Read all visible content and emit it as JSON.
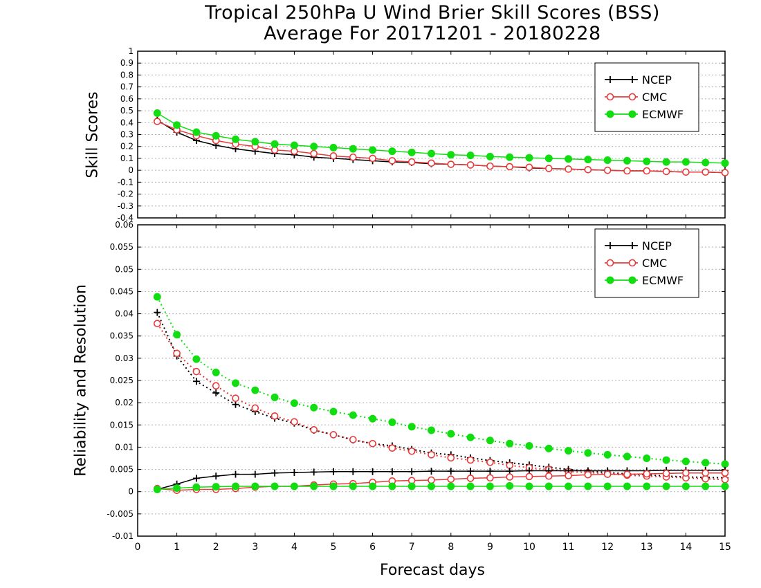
{
  "title_line1": "Tropical 250hPa U Wind Brier Skill Scores (BSS)",
  "title_line2": "Average For 20171201 - 20180228",
  "xlabel": "Forecast days",
  "colors": {
    "NCEP": "#000000",
    "CMC": "#e83a3a",
    "ECMWF": "#11dd11"
  },
  "chart_data": [
    {
      "type": "line",
      "ylabel": "Skill Scores",
      "xlim": [
        0,
        15
      ],
      "ylim": [
        -0.4,
        1
      ],
      "x_ticks": [
        "0",
        "1",
        "2",
        "3",
        "4",
        "5",
        "6",
        "7",
        "8",
        "9",
        "10",
        "11",
        "12",
        "13",
        "14",
        "15"
      ],
      "y_ticks": [
        "-0.4",
        "-0.3",
        "-0.2",
        "-0.1",
        "0",
        "0.1",
        "0.2",
        "0.3",
        "0.4",
        "0.5",
        "0.6",
        "0.7",
        "0.8",
        "0.9",
        "1"
      ],
      "grid": true,
      "legend_position": "top-right",
      "x": [
        0.5,
        1,
        1.5,
        2,
        2.5,
        3,
        3.5,
        4,
        4.5,
        5,
        5.5,
        6,
        6.5,
        7,
        7.5,
        8,
        8.5,
        9,
        9.5,
        10,
        10.5,
        11,
        11.5,
        12,
        12.5,
        13,
        13.5,
        14,
        14.5,
        15
      ],
      "series": [
        {
          "name": "NCEP",
          "marker": "plus",
          "line": "solid",
          "values": [
            0.42,
            0.32,
            0.25,
            0.21,
            0.18,
            0.16,
            0.14,
            0.13,
            0.11,
            0.1,
            0.09,
            0.08,
            0.07,
            0.065,
            0.055,
            0.05,
            0.045,
            0.035,
            0.03,
            0.02,
            0.015,
            0.01,
            0.005,
            0.0,
            -0.005,
            -0.005,
            -0.01,
            -0.015,
            -0.015,
            -0.02
          ]
        },
        {
          "name": "CMC",
          "marker": "open-circle",
          "line": "solid",
          "values": [
            0.41,
            0.34,
            0.29,
            0.25,
            0.22,
            0.2,
            0.17,
            0.16,
            0.14,
            0.12,
            0.11,
            0.1,
            0.08,
            0.07,
            0.06,
            0.05,
            0.045,
            0.035,
            0.03,
            0.025,
            0.015,
            0.01,
            0.005,
            0.0,
            -0.005,
            -0.005,
            -0.01,
            -0.015,
            -0.015,
            -0.02
          ]
        },
        {
          "name": "ECMWF",
          "marker": "filled-circle",
          "line": "solid",
          "values": [
            0.48,
            0.38,
            0.32,
            0.29,
            0.26,
            0.24,
            0.22,
            0.21,
            0.2,
            0.19,
            0.18,
            0.17,
            0.16,
            0.15,
            0.14,
            0.13,
            0.125,
            0.115,
            0.11,
            0.105,
            0.1,
            0.095,
            0.09,
            0.085,
            0.08,
            0.075,
            0.07,
            0.07,
            0.065,
            0.06
          ]
        }
      ]
    },
    {
      "type": "line",
      "ylabel": "Reliability and Resolution",
      "xlim": [
        0,
        15
      ],
      "ylim": [
        -0.01,
        0.06
      ],
      "x_ticks": [
        "0",
        "1",
        "2",
        "3",
        "4",
        "5",
        "6",
        "7",
        "8",
        "9",
        "10",
        "11",
        "12",
        "13",
        "14",
        "15"
      ],
      "y_ticks": [
        "-0.01",
        "-0.005",
        "0",
        "0.005",
        "0.01",
        "0.015",
        "0.02",
        "0.025",
        "0.03",
        "0.035",
        "0.04",
        "0.045",
        "0.05",
        "0.055",
        "0.06"
      ],
      "grid": true,
      "legend_position": "top-right",
      "x": [
        0.5,
        1,
        1.5,
        2,
        2.5,
        3,
        3.5,
        4,
        4.5,
        5,
        5.5,
        6,
        6.5,
        7,
        7.5,
        8,
        8.5,
        9,
        9.5,
        10,
        10.5,
        11,
        11.5,
        12,
        12.5,
        13,
        13.5,
        14,
        14.5,
        15
      ],
      "series": [
        {
          "name": "NCEP",
          "marker": "plus",
          "line": "dotted",
          "component": "resolution",
          "values": [
            0.0403,
            0.0305,
            0.0248,
            0.0222,
            0.0196,
            0.018,
            0.0165,
            0.0154,
            0.0138,
            0.0128,
            0.0116,
            0.0108,
            0.0103,
            0.0095,
            0.0087,
            0.0083,
            0.0076,
            0.007,
            0.0065,
            0.006,
            0.0055,
            0.005,
            0.0046,
            0.0043,
            0.004,
            0.0038,
            0.0035,
            0.0033,
            0.0032,
            0.0031
          ]
        },
        {
          "name": "CMC",
          "marker": "open-circle",
          "line": "dotted",
          "component": "resolution",
          "values": [
            0.0378,
            0.0311,
            0.027,
            0.0238,
            0.021,
            0.0188,
            0.017,
            0.0157,
            0.0139,
            0.0128,
            0.0117,
            0.0108,
            0.0098,
            0.0091,
            0.0083,
            0.0076,
            0.0071,
            0.0066,
            0.0059,
            0.0054,
            0.005,
            0.0045,
            0.0043,
            0.004,
            0.0037,
            0.0035,
            0.0033,
            0.0031,
            0.0029,
            0.0027
          ]
        },
        {
          "name": "ECMWF",
          "marker": "filled-circle",
          "line": "dotted",
          "component": "resolution",
          "values": [
            0.0438,
            0.0353,
            0.0298,
            0.0268,
            0.0244,
            0.0228,
            0.0212,
            0.0199,
            0.0189,
            0.018,
            0.0172,
            0.0164,
            0.0156,
            0.0146,
            0.0138,
            0.013,
            0.0122,
            0.0115,
            0.0108,
            0.0103,
            0.0097,
            0.0092,
            0.0087,
            0.0083,
            0.0079,
            0.0075,
            0.0071,
            0.0068,
            0.0065,
            0.0062
          ]
        },
        {
          "name": "NCEP",
          "marker": "plus",
          "line": "solid",
          "component": "reliability",
          "values": [
            0.0005,
            0.0017,
            0.003,
            0.0035,
            0.0039,
            0.0039,
            0.0042,
            0.0043,
            0.0044,
            0.0045,
            0.0045,
            0.0045,
            0.0045,
            0.0045,
            0.0046,
            0.0046,
            0.0046,
            0.0046,
            0.0046,
            0.0047,
            0.0047,
            0.0047,
            0.0047,
            0.0047,
            0.0047,
            0.0047,
            0.0048,
            0.0048,
            0.0048,
            0.0048
          ]
        },
        {
          "name": "CMC",
          "marker": "open-circle",
          "line": "solid",
          "component": "reliability",
          "values": [
            0.0007,
            0.0003,
            0.0005,
            0.0005,
            0.0007,
            0.001,
            0.0012,
            0.0012,
            0.0015,
            0.0017,
            0.0018,
            0.0021,
            0.0024,
            0.0025,
            0.0026,
            0.0028,
            0.003,
            0.0031,
            0.0033,
            0.0034,
            0.0035,
            0.0036,
            0.0038,
            0.0039,
            0.0039,
            0.004,
            0.0041,
            0.0042,
            0.0042,
            0.0042
          ]
        },
        {
          "name": "ECMWF",
          "marker": "filled-circle",
          "line": "solid",
          "component": "reliability",
          "values": [
            0.0005,
            0.0008,
            0.001,
            0.0011,
            0.0012,
            0.0012,
            0.0012,
            0.0012,
            0.0012,
            0.0012,
            0.0012,
            0.0012,
            0.0012,
            0.0012,
            0.0012,
            0.0012,
            0.0012,
            0.0012,
            0.0013,
            0.0012,
            0.0012,
            0.0012,
            0.0012,
            0.0012,
            0.0012,
            0.0012,
            0.0012,
            0.0012,
            0.0012,
            0.0012
          ]
        }
      ]
    }
  ]
}
